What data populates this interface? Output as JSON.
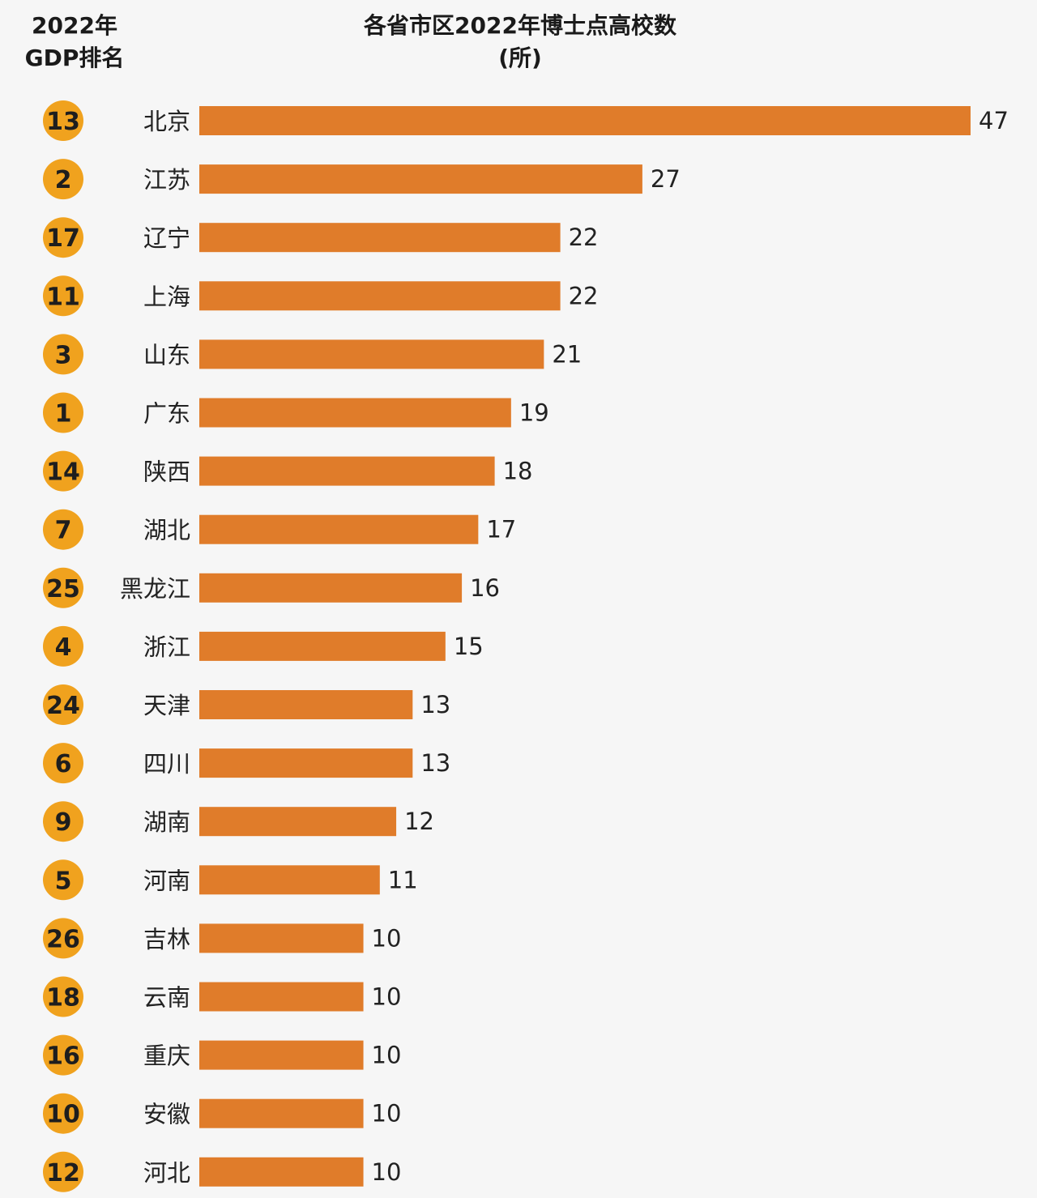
{
  "chart_data": {
    "type": "bar",
    "orientation": "horizontal",
    "title": "各省市区2022年博士点高校数",
    "unit": "(所)",
    "rank_header": [
      "2022年",
      "GDP排名"
    ],
    "categories": [
      "北京",
      "江苏",
      "辽宁",
      "上海",
      "山东",
      "广东",
      "陕西",
      "湖北",
      "黑龙江",
      "浙江",
      "天津",
      "四川",
      "湖南",
      "河南",
      "吉林",
      "云南",
      "重庆",
      "安徽",
      "河北"
    ],
    "values": [
      47,
      27,
      22,
      22,
      21,
      19,
      18,
      17,
      16,
      15,
      13,
      13,
      12,
      11,
      10,
      10,
      10,
      10,
      10
    ],
    "gdp_rank": [
      13,
      2,
      17,
      11,
      3,
      1,
      14,
      7,
      25,
      4,
      24,
      6,
      9,
      5,
      26,
      18,
      16,
      10,
      12
    ],
    "xlim": [
      0,
      47
    ],
    "grid": false,
    "legend": "none",
    "colors": {
      "bar": "#e07c2a",
      "rank_badge": "#f0a21e",
      "background": "#f6f6f6",
      "text": "#222222"
    }
  }
}
